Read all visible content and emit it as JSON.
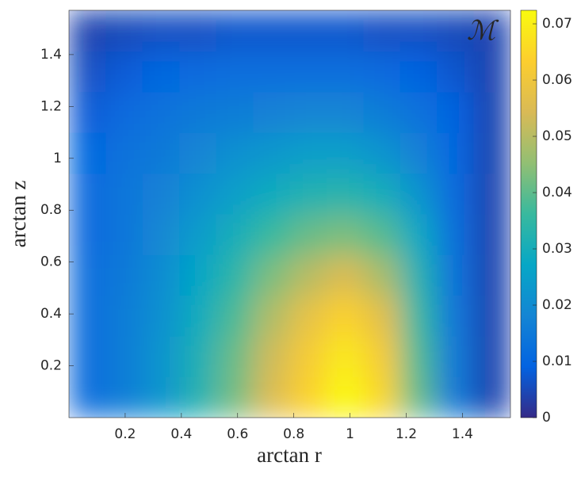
{
  "chart_data": {
    "type": "heatmap",
    "annotation": "ℳ",
    "xlabel": "arctan r",
    "ylabel": "arctan z",
    "x": [
      0.065,
      0.196,
      0.327,
      0.458,
      0.589,
      0.72,
      0.851,
      0.982,
      1.113,
      1.244,
      1.374,
      1.505
    ],
    "y": [
      0.079,
      0.236,
      0.393,
      0.55,
      0.707,
      0.864,
      1.021,
      1.178,
      1.335,
      1.492
    ],
    "values": [
      [
        0.012,
        0.016,
        0.022,
        0.032,
        0.042,
        0.055,
        0.064,
        0.072,
        0.065,
        0.04,
        0.015,
        0.004
      ],
      [
        0.012,
        0.016,
        0.022,
        0.031,
        0.041,
        0.053,
        0.062,
        0.069,
        0.062,
        0.038,
        0.015,
        0.004
      ],
      [
        0.012,
        0.016,
        0.021,
        0.029,
        0.038,
        0.049,
        0.058,
        0.064,
        0.057,
        0.035,
        0.014,
        0.004
      ],
      [
        0.012,
        0.015,
        0.02,
        0.027,
        0.034,
        0.043,
        0.05,
        0.055,
        0.048,
        0.032,
        0.013,
        0.004
      ],
      [
        0.011,
        0.014,
        0.019,
        0.024,
        0.03,
        0.036,
        0.041,
        0.043,
        0.039,
        0.028,
        0.012,
        0.004
      ],
      [
        0.011,
        0.014,
        0.017,
        0.021,
        0.025,
        0.029,
        0.032,
        0.033,
        0.03,
        0.022,
        0.011,
        0.004
      ],
      [
        0.01,
        0.013,
        0.015,
        0.018,
        0.021,
        0.023,
        0.025,
        0.025,
        0.022,
        0.017,
        0.01,
        0.004
      ],
      [
        0.008,
        0.011,
        0.013,
        0.015,
        0.016,
        0.017,
        0.018,
        0.018,
        0.016,
        0.013,
        0.009,
        0.004
      ],
      [
        0.006,
        0.008,
        0.01,
        0.011,
        0.012,
        0.012,
        0.012,
        0.012,
        0.011,
        0.009,
        0.007,
        0.004
      ],
      [
        0.004,
        0.005,
        0.006,
        0.006,
        0.007,
        0.007,
        0.007,
        0.007,
        0.006,
        0.006,
        0.005,
        0.004
      ]
    ],
    "xlim": [
      0,
      1.5708
    ],
    "ylim": [
      0,
      1.5708
    ],
    "xticks": [
      0.2,
      0.4,
      0.6,
      0.8,
      1,
      1.2,
      1.4
    ],
    "yticks": [
      0.2,
      0.4,
      0.6,
      0.8,
      1,
      1.2,
      1.4
    ],
    "clim": [
      0,
      0.0724
    ],
    "cticks": [
      0,
      0.01,
      0.02,
      0.03,
      0.04,
      0.05,
      0.06,
      0.07
    ],
    "colormap": [
      "#352a87",
      "#0363e1",
      "#1485d4",
      "#06a7c6",
      "#38b99e",
      "#92bf73",
      "#d9ba56",
      "#fcce2e",
      "#f9fb0e"
    ],
    "annotation_color": "#ffff33"
  }
}
